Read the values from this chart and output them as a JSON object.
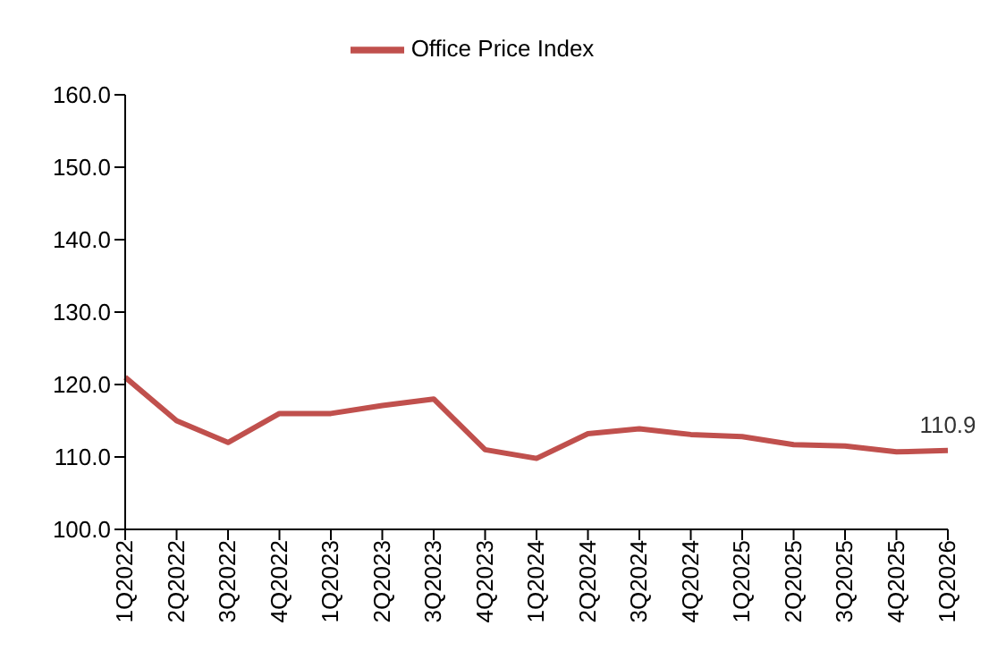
{
  "chart_data": {
    "type": "line",
    "categories": [
      "1Q2022",
      "2Q2022",
      "3Q2022",
      "4Q2022",
      "1Q2023",
      "2Q2023",
      "3Q2023",
      "4Q2023",
      "1Q2024",
      "2Q2024",
      "3Q2024",
      "4Q2024",
      "1Q2025",
      "2Q2025",
      "3Q2025",
      "4Q2025",
      "1Q2026"
    ],
    "series": [
      {
        "name": "Office Price Index",
        "color": "#c0504d",
        "values": [
          121.0,
          115.0,
          112.0,
          116.0,
          116.0,
          117.1,
          118.0,
          111.0,
          109.8,
          113.2,
          113.9,
          113.1,
          112.8,
          111.7,
          111.5,
          110.7,
          110.9
        ],
        "value_labels": [
          null,
          null,
          null,
          null,
          null,
          null,
          null,
          null,
          null,
          null,
          null,
          null,
          null,
          null,
          null,
          null,
          "110.9"
        ]
      }
    ],
    "ylim": [
      100,
      160
    ],
    "yticks": [
      {
        "value": 100,
        "label": "100.0"
      },
      {
        "value": 110,
        "label": "110.0"
      },
      {
        "value": 120,
        "label": "120.0"
      },
      {
        "value": 130,
        "label": "130.0"
      },
      {
        "value": 140,
        "label": "140.0"
      },
      {
        "value": 150,
        "label": "150.0"
      },
      {
        "value": 160,
        "label": "160.0"
      }
    ],
    "legend": "top",
    "grid": false,
    "marker": "none",
    "line_style": "solid"
  }
}
